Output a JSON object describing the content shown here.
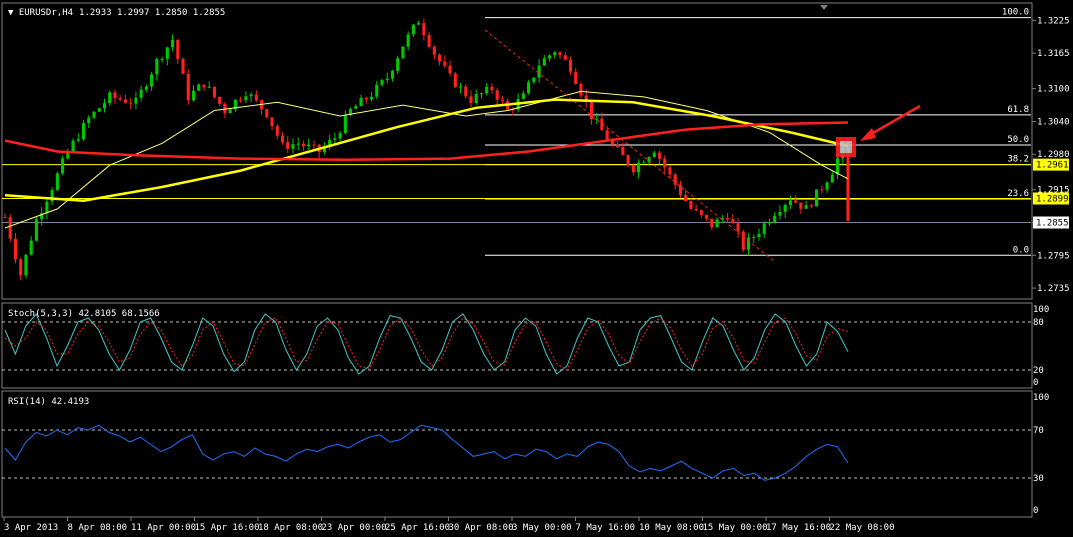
{
  "header": {
    "symbol_tf": "EURUSDr,H4",
    "ohlc": "1.2933 1.2997 1.2850 1.2855"
  },
  "colors": {
    "background": "#000000",
    "candle_up": "#00c800",
    "candle_down": "#ff2020",
    "ma_fast": "#ffff80",
    "ma_mid": "#ffff00",
    "ma_slow": "#ff2020",
    "stoch_main": "#40c8c8",
    "stoch_signal": "#ff2020",
    "rsi": "#2070ff",
    "fib": "#ffffff",
    "arrow": "#ff2020",
    "price_tag": "#ffff00"
  },
  "chart_data": [
    {
      "type": "candlestick",
      "title": "EURUSDr,H4",
      "price_axis_ticks": [
        "1.3225",
        "1.3165",
        "1.3100",
        "1.3040",
        "1.2980",
        "1.2915",
        "1.2855",
        "1.2795",
        "1.2735"
      ],
      "ylim": [
        1.2715,
        1.3255
      ],
      "time_axis_labels": [
        "3 Apr 2013",
        "8 Apr 08:00",
        "11 Apr 00:00",
        "15 Apr 16:00",
        "18 Apr 08:00",
        "23 Apr 00:00",
        "25 Apr 16:00",
        "30 Apr 08:00",
        "3 May 00:00",
        "7 May 16:00",
        "10 May 08:00",
        "15 May 00:00",
        "17 May 16:00",
        "22 May 08:00"
      ],
      "fibonacci": {
        "levels": [
          "100.0",
          "61.8",
          "50.0",
          "38.2",
          "23.6",
          "0.0"
        ],
        "values": [
          1.323,
          1.3052,
          1.2997,
          1.2961,
          1.2898,
          1.2795
        ]
      },
      "horizontal_lines": [
        {
          "price": 1.2961,
          "label": "1.2961",
          "color": "#ffff00"
        },
        {
          "price": 1.2899,
          "label": "1.2899",
          "color": "#ffff00"
        },
        {
          "price": 1.2855,
          "label": "1.2855",
          "color": "#8080a0"
        }
      ],
      "last_price": 1.2855,
      "close_path": [
        [
          0,
          1.2865
        ],
        [
          3,
          1.276
        ],
        [
          6,
          1.286
        ],
        [
          9,
          1.292
        ],
        [
          12,
          1.2985
        ],
        [
          16,
          1.3045
        ],
        [
          20,
          1.3085
        ],
        [
          25,
          1.3075
        ],
        [
          29,
          1.315
        ],
        [
          32,
          1.319
        ],
        [
          35,
          1.3085
        ],
        [
          38,
          1.311
        ],
        [
          42,
          1.306
        ],
        [
          46,
          1.3095
        ],
        [
          50,
          1.3055
        ],
        [
          53,
          1.2995
        ],
        [
          56,
          1.3
        ],
        [
          60,
          1.2985
        ],
        [
          63,
          1.301
        ],
        [
          66,
          1.306
        ],
        [
          70,
          1.309
        ],
        [
          73,
          1.312
        ],
        [
          76,
          1.318
        ],
        [
          79,
          1.3225
        ],
        [
          82,
          1.3165
        ],
        [
          85,
          1.312
        ],
        [
          89,
          1.308
        ],
        [
          93,
          1.31
        ],
        [
          96,
          1.306
        ],
        [
          99,
          1.3085
        ],
        [
          102,
          1.3145
        ],
        [
          105,
          1.317
        ],
        [
          108,
          1.314
        ],
        [
          112,
          1.305
        ],
        [
          116,
          1.2995
        ],
        [
          120,
          1.2955
        ],
        [
          124,
          1.299
        ],
        [
          127,
          1.294
        ],
        [
          131,
          1.288
        ],
        [
          135,
          1.285
        ],
        [
          138,
          1.287
        ],
        [
          141,
          1.281
        ],
        [
          144,
          1.284
        ],
        [
          147,
          1.2875
        ],
        [
          150,
          1.29
        ],
        [
          153,
          1.288
        ],
        [
          156,
          1.292
        ],
        [
          158,
          1.295
        ],
        [
          160,
          1.2993
        ],
        [
          161,
          1.2855
        ]
      ],
      "moving_averages": [
        {
          "name": "MA fast",
          "points": [
            [
              0,
              1.2845
            ],
            [
              10,
              1.288
            ],
            [
              20,
              1.296
            ],
            [
              30,
              1.3
            ],
            [
              40,
              1.306
            ],
            [
              52,
              1.3075
            ],
            [
              64,
              1.305
            ],
            [
              76,
              1.307
            ],
            [
              88,
              1.305
            ],
            [
              96,
              1.306
            ],
            [
              110,
              1.3095
            ],
            [
              122,
              1.3085
            ],
            [
              134,
              1.306
            ],
            [
              146,
              1.302
            ],
            [
              156,
              1.296
            ],
            [
              161,
              1.2935
            ]
          ]
        },
        {
          "name": "MA mid",
          "points": [
            [
              0,
              1.2905
            ],
            [
              15,
              1.2895
            ],
            [
              30,
              1.292
            ],
            [
              45,
              1.295
            ],
            [
              60,
              1.299
            ],
            [
              75,
              1.303
            ],
            [
              90,
              1.3065
            ],
            [
              105,
              1.308
            ],
            [
              120,
              1.3075
            ],
            [
              135,
              1.305
            ],
            [
              150,
              1.302
            ],
            [
              161,
              1.2995
            ]
          ]
        },
        {
          "name": "MA slow",
          "points": [
            [
              0,
              1.3005
            ],
            [
              10,
              1.2985
            ],
            [
              25,
              1.2978
            ],
            [
              45,
              1.2972
            ],
            [
              65,
              1.297
            ],
            [
              85,
              1.2972
            ],
            [
              100,
              1.2985
            ],
            [
              115,
              1.3005
            ],
            [
              130,
              1.3025
            ],
            [
              145,
              1.3035
            ],
            [
              161,
              1.3038
            ]
          ]
        }
      ],
      "annotations": [
        "red arrow pointing to highlighted candle at 50.0 level"
      ]
    },
    {
      "type": "line",
      "title": "Stoch(5,3,3) 42.8105 68.1566",
      "ylim": [
        0,
        100
      ],
      "levels": [
        20,
        80
      ],
      "y_ticks": [
        "100",
        "80",
        "20",
        "0"
      ],
      "series": [
        {
          "name": "Stoch(5,3,3)",
          "values": [
            70,
            40,
            75,
            90,
            60,
            25,
            50,
            80,
            85,
            70,
            40,
            20,
            45,
            80,
            85,
            60,
            30,
            20,
            50,
            85,
            75,
            40,
            18,
            30,
            70,
            90,
            80,
            45,
            20,
            40,
            75,
            85,
            70,
            35,
            15,
            25,
            60,
            88,
            85,
            60,
            30,
            20,
            45,
            80,
            90,
            70,
            40,
            20,
            30,
            70,
            85,
            75,
            40,
            15,
            25,
            60,
            85,
            80,
            50,
            25,
            30,
            70,
            85,
            88,
            60,
            30,
            20,
            55,
            85,
            75,
            45,
            20,
            35,
            70,
            90,
            80,
            50,
            25,
            40,
            80,
            68,
            42.8105
          ]
        },
        {
          "values": [
            60,
            50,
            60,
            80,
            70,
            40,
            40,
            65,
            80,
            75,
            55,
            30,
            35,
            65,
            80,
            70,
            45,
            25,
            38,
            70,
            80,
            55,
            28,
            25,
            52,
            80,
            85,
            60,
            30,
            32,
            58,
            80,
            78,
            50,
            25,
            22,
            45,
            75,
            85,
            72,
            45,
            25,
            35,
            65,
            85,
            78,
            55,
            30,
            26,
            55,
            78,
            80,
            55,
            28,
            20,
            45,
            72,
            82,
            65,
            38,
            28,
            55,
            78,
            85,
            72,
            45,
            25,
            40,
            72,
            80,
            60,
            32,
            28,
            55,
            80,
            85,
            65,
            38,
            32,
            62,
            72,
            68.1566
          ]
        }
      ]
    },
    {
      "type": "line",
      "title": "RSI(14) 42.4193",
      "ylim": [
        0,
        100
      ],
      "levels": [
        30,
        70
      ],
      "y_ticks": [
        "100",
        "70",
        "30",
        "0"
      ],
      "series": [
        {
          "name": "RSI(14)",
          "values": [
            55,
            45,
            60,
            68,
            65,
            70,
            66,
            72,
            70,
            74,
            68,
            65,
            60,
            64,
            58,
            52,
            56,
            62,
            66,
            50,
            45,
            50,
            52,
            48,
            55,
            50,
            48,
            44,
            50,
            54,
            52,
            56,
            58,
            55,
            60,
            64,
            66,
            60,
            62,
            68,
            74,
            72,
            70,
            62,
            55,
            48,
            50,
            52,
            46,
            50,
            48,
            54,
            52,
            46,
            50,
            48,
            56,
            60,
            58,
            52,
            40,
            35,
            38,
            36,
            40,
            44,
            38,
            34,
            30,
            36,
            38,
            32,
            34,
            28,
            30,
            34,
            40,
            48,
            54,
            58,
            56,
            42.4193
          ]
        }
      ]
    }
  ],
  "subwindows": {
    "stoch_title": "Stoch(5,3,3) 42.8105 68.1566",
    "rsi_title": "RSI(14) 42.4193"
  }
}
